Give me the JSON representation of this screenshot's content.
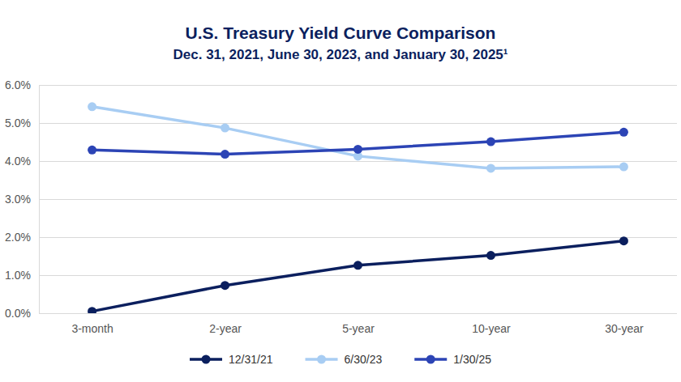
{
  "chart_data": {
    "type": "line",
    "title": "U.S. Treasury Yield Curve Comparison",
    "subtitle": "Dec. 31, 2021, June 30, 2023, and January 30, 2025¹",
    "categories": [
      "3-month",
      "2-year",
      "5-year",
      "10-year",
      "30-year"
    ],
    "series": [
      {
        "name": "12/31/21",
        "color": "#0b1f5e",
        "values": [
          0.05,
          0.73,
          1.26,
          1.52,
          1.9
        ]
      },
      {
        "name": "6/30/23",
        "color": "#a8cdf3",
        "values": [
          5.43,
          4.87,
          4.13,
          3.81,
          3.85
        ]
      },
      {
        "name": "1/30/25",
        "color": "#2c44b5",
        "values": [
          4.29,
          4.18,
          4.31,
          4.51,
          4.76
        ]
      }
    ],
    "ylim": [
      0,
      6
    ],
    "yticks": [
      {
        "value": 0,
        "label": "0.0%"
      },
      {
        "value": 1,
        "label": "1.0%"
      },
      {
        "value": 2,
        "label": "2.0%"
      },
      {
        "value": 3,
        "label": "3.0%"
      },
      {
        "value": 4,
        "label": "4.0%"
      },
      {
        "value": 5,
        "label": "5.0%"
      },
      {
        "value": 6,
        "label": "6.0%"
      }
    ],
    "grid": true,
    "legend": "bottom",
    "marker": "circle",
    "line_style": "solid"
  }
}
